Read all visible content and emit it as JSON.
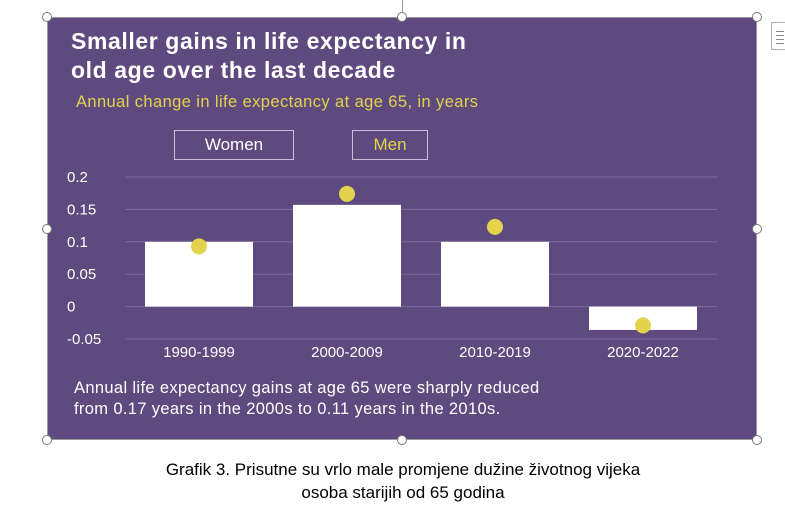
{
  "chart_data": {
    "type": "bar",
    "title": "Smaller gains in life expectancy in old age over the last decade",
    "title_lines": [
      "Smaller gains in life expectancy in",
      "old age over the last decade"
    ],
    "subtitle": "Annual change in life expectancy at age 65, in years",
    "categories": [
      "1990-1999",
      "2000-2009",
      "2010-2019",
      "2020-2022"
    ],
    "series": [
      {
        "name": "Women",
        "mark": "bar",
        "values": [
          0.1,
          0.157,
          0.1,
          -0.036
        ]
      },
      {
        "name": "Men",
        "mark": "dot",
        "values": [
          0.093,
          0.174,
          0.123,
          -0.029
        ]
      }
    ],
    "ylim": [
      -0.05,
      0.2
    ],
    "yticks": [
      0.2,
      0.15,
      0.1,
      0.05,
      0,
      -0.05
    ],
    "ytick_labels": [
      "0.2",
      "0.15",
      "0.1",
      "0.05",
      "0",
      "-0.05"
    ],
    "xlabel": "",
    "ylabel": "",
    "grid": true,
    "legend": [
      "Women",
      "Men"
    ],
    "note_lines": [
      "Annual life expectancy gains at age 65 were sharply reduced",
      "from 0.17 years in the 2000s to 0.11 years in the 2010s."
    ],
    "colors": {
      "background": "#5e4a7e",
      "bar": "#ffffff",
      "dot": "#e3d34c",
      "grid": "#7d6c98",
      "text": "#ffffff"
    }
  },
  "caption_lines": [
    "Grafik 3. Prisutne su vrlo male promjene dužine životnog vijeka",
    "osoba starijih od 65 godina"
  ]
}
